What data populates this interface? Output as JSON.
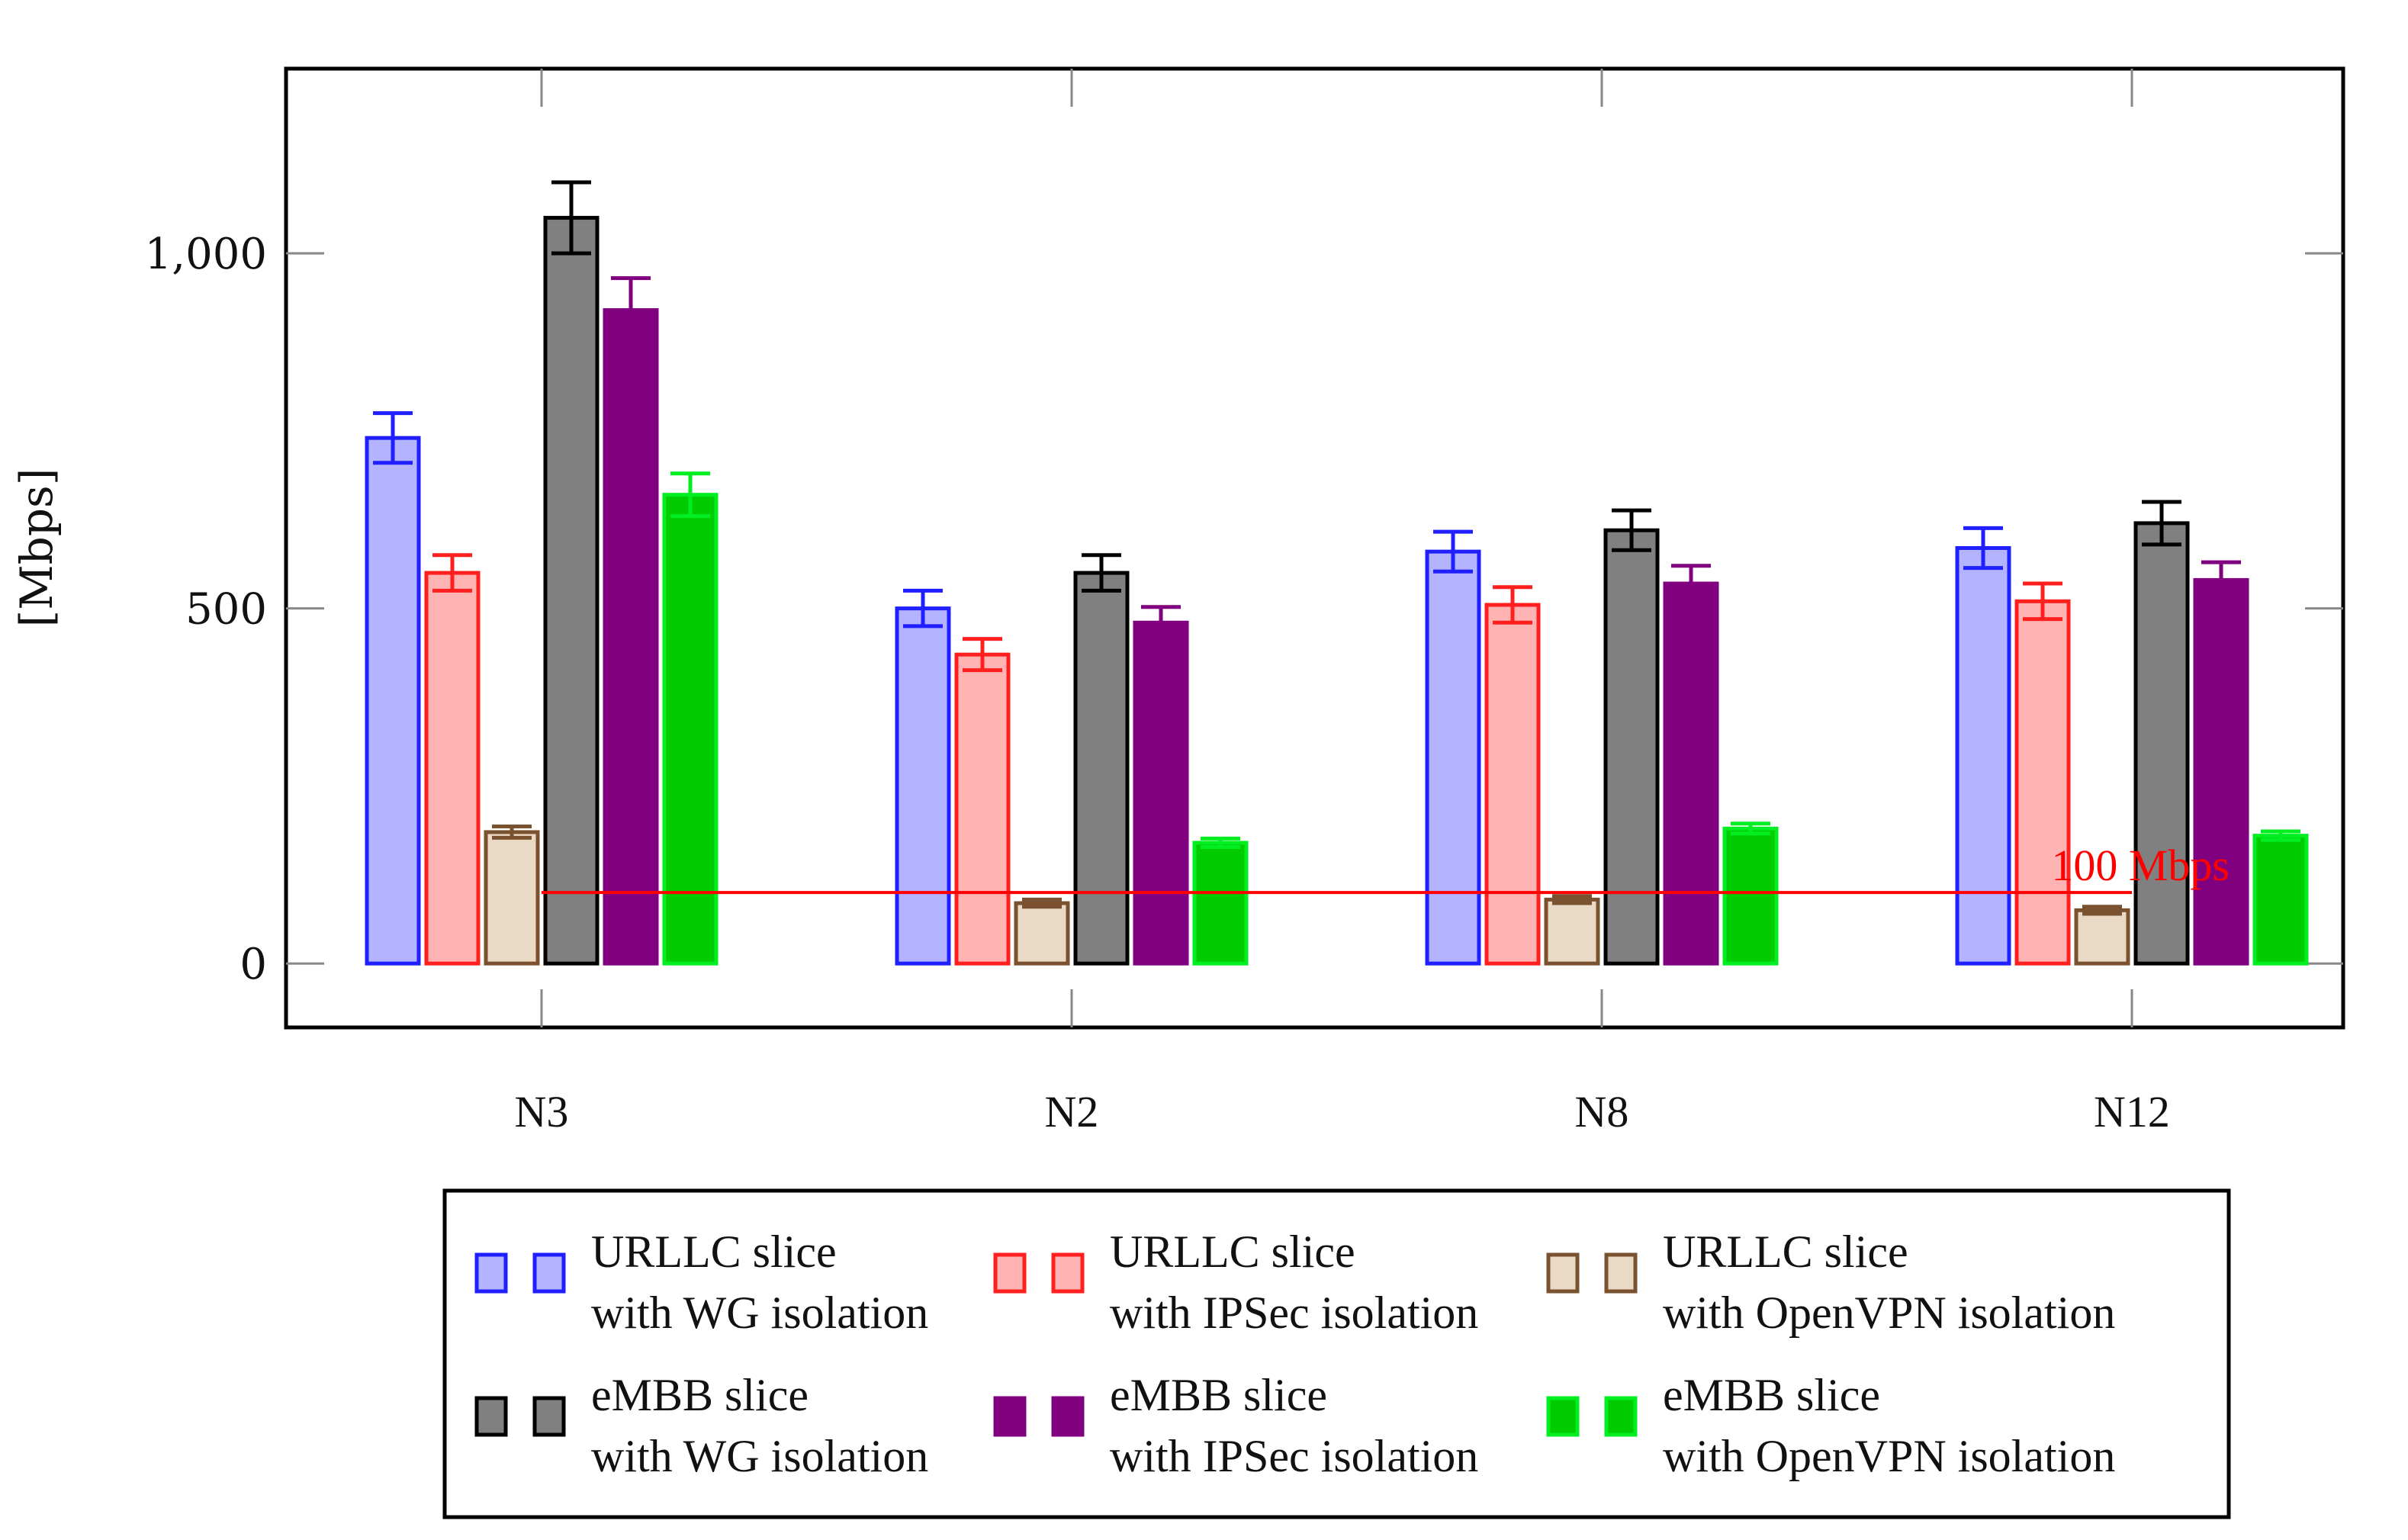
{
  "chart_data": {
    "type": "bar",
    "title": "",
    "xlabel": "",
    "ylabel": "[Mbps]",
    "ylim": [
      -90,
      1260
    ],
    "yticks": [
      0,
      500,
      1000
    ],
    "ytick_labels": [
      "0",
      "500",
      "1,000"
    ],
    "grid": "off",
    "legend_position": "bottom",
    "categories": [
      "N3",
      "N2",
      "N8",
      "N12"
    ],
    "series": [
      {
        "name": "URLLC slice with WG isolation",
        "legend_lines": [
          "URLLC slice",
          "with WG isolation"
        ],
        "stroke": "#1f1fff",
        "fill": "#b3b3ff",
        "values": [
          740,
          500,
          580,
          585
        ],
        "errors": [
          35,
          25,
          28,
          28
        ]
      },
      {
        "name": "URLLC slice with IPSec isolation",
        "legend_lines": [
          "URLLC slice",
          "with IPSec isolation"
        ],
        "stroke": "#ff1f1f",
        "fill": "#ffb3b3",
        "values": [
          550,
          435,
          505,
          510
        ],
        "errors": [
          25,
          22,
          25,
          25
        ]
      },
      {
        "name": "URLLC slice with OpenVPN isolation",
        "legend_lines": [
          "URLLC slice",
          "with OpenVPN isolation"
        ],
        "stroke": "#7a5230",
        "fill": "#ead9c4",
        "values": [
          185,
          85,
          90,
          75
        ],
        "errors": [
          8,
          5,
          5,
          5
        ]
      },
      {
        "name": "eMBB slice with WG isolation",
        "legend_lines": [
          "eMBB slice",
          "with WG isolation"
        ],
        "stroke": "#000000",
        "fill": "#808080",
        "values": [
          1050,
          550,
          610,
          620
        ],
        "errors": [
          50,
          25,
          28,
          30
        ]
      },
      {
        "name": "eMBB slice with IPSec isolation",
        "legend_lines": [
          "eMBB slice",
          "with IPSec isolation"
        ],
        "stroke": "#800080",
        "fill": "#800080",
        "values": [
          920,
          480,
          535,
          540
        ],
        "errors": [
          45,
          22,
          25,
          25
        ]
      },
      {
        "name": "eMBB slice with OpenVPN isolation",
        "legend_lines": [
          "eMBB slice",
          "with OpenVPN isolation"
        ],
        "stroke": "#00ee22",
        "fill": "#00cc00",
        "values": [
          660,
          170,
          190,
          180
        ],
        "errors": [
          30,
          6,
          7,
          6
        ]
      }
    ],
    "reference_line": {
      "value": 100,
      "label": "100 Mbps",
      "color": "#ff0000",
      "from_category": "N3",
      "to_category": "N12"
    }
  }
}
